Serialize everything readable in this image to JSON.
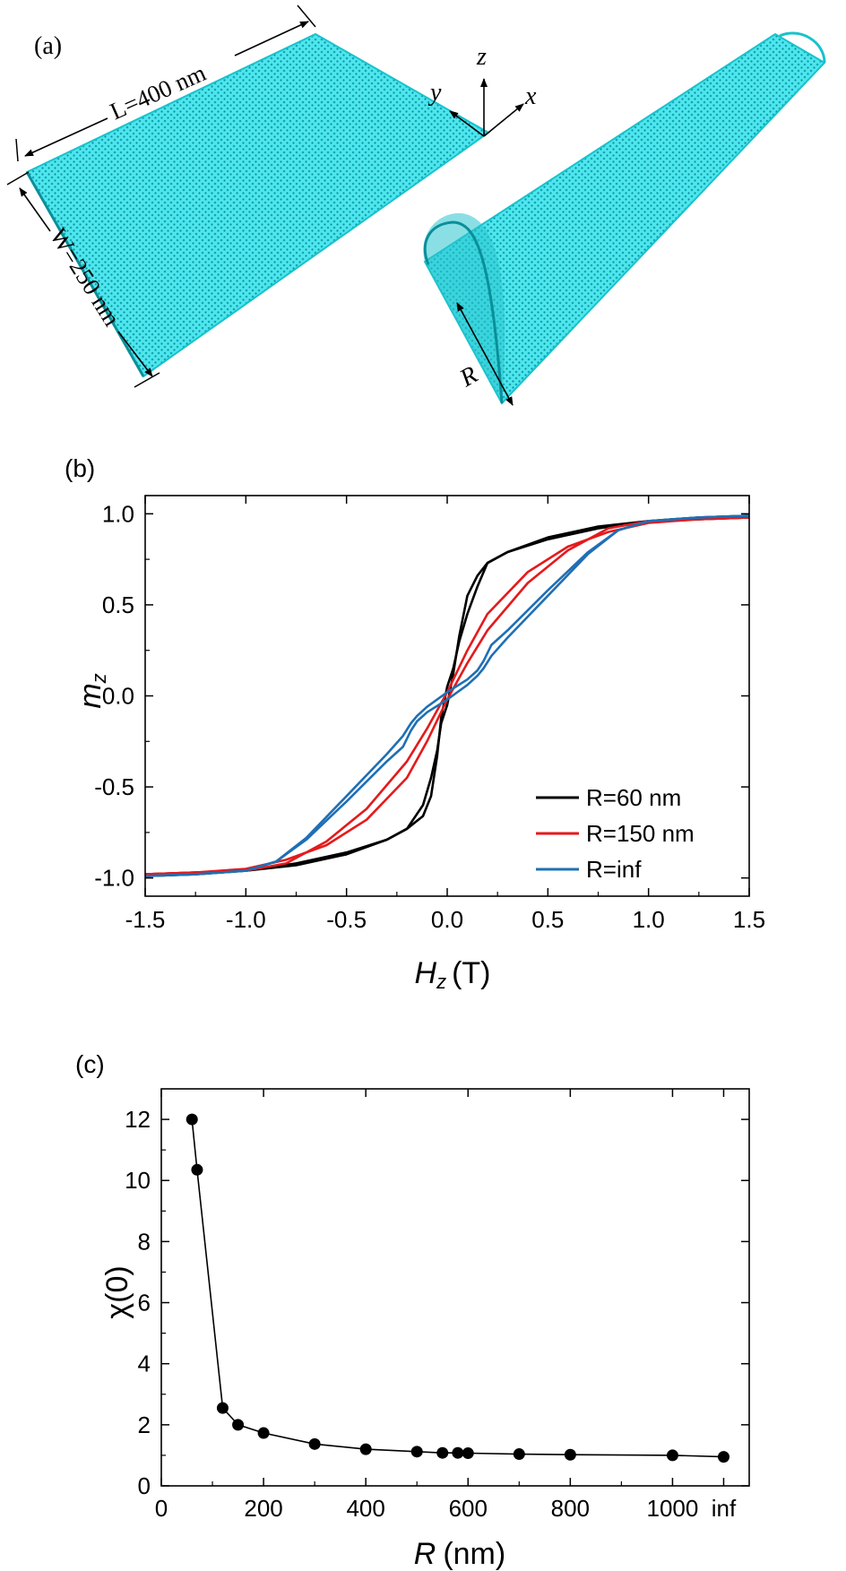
{
  "panel_a": {
    "label": "(a)",
    "length_label": "L=400 nm",
    "width_label": "W=250 nm",
    "radius_label": "R",
    "axis_x": "x",
    "axis_y": "y",
    "axis_z": "z",
    "spin_color": "#20d4e0"
  },
  "chart_data": [
    {
      "panel": "(b)",
      "type": "line",
      "title": "",
      "xlabel_main": "H",
      "xlabel_sub": "z",
      "xlabel_unit": "(T)",
      "ylabel_main": "m",
      "ylabel_sub": "z",
      "xlim": [
        -1.5,
        1.5
      ],
      "ylim": [
        -1.1,
        1.1
      ],
      "xticks": [
        -1.5,
        -1.0,
        -0.5,
        0.0,
        0.5,
        1.0,
        1.5
      ],
      "xtick_labels": [
        "-1.5",
        "-1.0",
        "-0.5",
        "0.0",
        "0.5",
        "1.0",
        "1.5"
      ],
      "yticks": [
        -1.0,
        -0.5,
        0.0,
        0.5,
        1.0
      ],
      "ytick_labels": [
        "-1.0",
        "-0.5",
        "0.0",
        "0.5",
        "1.0"
      ],
      "legend_position": "bottom-right",
      "series": [
        {
          "name": "R=60 nm",
          "color": "#000000",
          "x": [
            -1.5,
            -1.25,
            -1.0,
            -0.75,
            -0.5,
            -0.3,
            -0.2,
            -0.12,
            -0.08,
            -0.05,
            -0.03,
            0.0,
            0.03,
            0.06,
            0.1,
            0.15,
            0.2,
            0.3,
            0.5,
            0.75,
            1.0,
            1.25,
            1.5
          ],
          "y_ascending": [
            -0.98,
            -0.97,
            -0.96,
            -0.92,
            -0.86,
            -0.79,
            -0.73,
            -0.6,
            -0.45,
            -0.3,
            -0.15,
            -0.05,
            0.12,
            0.33,
            0.55,
            0.66,
            0.73,
            0.79,
            0.87,
            0.93,
            0.96,
            0.98,
            0.99
          ],
          "y_descending": [
            -0.99,
            -0.98,
            -0.96,
            -0.93,
            -0.87,
            -0.79,
            -0.73,
            -0.66,
            -0.55,
            -0.33,
            -0.12,
            0.05,
            0.15,
            0.3,
            0.45,
            0.6,
            0.73,
            0.79,
            0.86,
            0.92,
            0.96,
            0.97,
            0.98
          ]
        },
        {
          "name": "R=150 nm",
          "color": "#e41a1c",
          "x": [
            -1.5,
            -1.25,
            -1.0,
            -0.8,
            -0.6,
            -0.4,
            -0.2,
            -0.1,
            0.0,
            0.1,
            0.2,
            0.4,
            0.6,
            0.8,
            1.0,
            1.25,
            1.5
          ],
          "y_ascending": [
            -0.98,
            -0.97,
            -0.95,
            -0.9,
            -0.82,
            -0.68,
            -0.45,
            -0.25,
            -0.02,
            0.18,
            0.36,
            0.62,
            0.8,
            0.92,
            0.96,
            0.97,
            0.98
          ],
          "y_descending": [
            -0.98,
            -0.97,
            -0.96,
            -0.92,
            -0.8,
            -0.62,
            -0.36,
            -0.18,
            0.02,
            0.25,
            0.45,
            0.68,
            0.82,
            0.9,
            0.95,
            0.97,
            0.98
          ]
        },
        {
          "name": "R=inf",
          "color": "#1f6fb4",
          "x": [
            -1.5,
            -1.25,
            -1.0,
            -0.85,
            -0.7,
            -0.5,
            -0.3,
            -0.22,
            -0.18,
            -0.15,
            -0.1,
            0.0,
            0.1,
            0.15,
            0.18,
            0.22,
            0.3,
            0.5,
            0.7,
            0.85,
            1.0,
            1.25,
            1.5
          ],
          "y_ascending": [
            -0.99,
            -0.98,
            -0.96,
            -0.91,
            -0.78,
            -0.55,
            -0.32,
            -0.22,
            -0.15,
            -0.11,
            -0.06,
            0.02,
            0.09,
            0.14,
            0.19,
            0.28,
            0.36,
            0.58,
            0.79,
            0.91,
            0.96,
            0.98,
            0.99
          ],
          "y_descending": [
            -0.99,
            -0.98,
            -0.96,
            -0.91,
            -0.79,
            -0.58,
            -0.36,
            -0.28,
            -0.19,
            -0.14,
            -0.09,
            -0.02,
            0.06,
            0.11,
            0.15,
            0.22,
            0.32,
            0.55,
            0.78,
            0.91,
            0.96,
            0.98,
            0.99
          ]
        }
      ]
    },
    {
      "panel": "(c)",
      "type": "line",
      "title": "",
      "xlabel_main": "R",
      "xlabel_unit": "(nm)",
      "ylabel": "χ(0)",
      "xlim": [
        0,
        1150
      ],
      "ylim": [
        0,
        13
      ],
      "xticks": [
        0,
        200,
        400,
        600,
        800,
        1000,
        1100
      ],
      "xtick_labels": [
        "0",
        "200",
        "400",
        "600",
        "800",
        "1000",
        "inf"
      ],
      "yticks": [
        0,
        2,
        4,
        6,
        8,
        10,
        12
      ],
      "ytick_labels": [
        "0",
        "2",
        "4",
        "6",
        "8",
        "10",
        "12"
      ],
      "series": [
        {
          "name": "",
          "color": "#000000",
          "x": [
            60,
            70,
            120,
            150,
            200,
            300,
            400,
            500,
            550,
            580,
            600,
            700,
            800,
            1000,
            1100
          ],
          "y": [
            12.0,
            10.35,
            2.55,
            2.0,
            1.73,
            1.37,
            1.2,
            1.12,
            1.08,
            1.08,
            1.07,
            1.04,
            1.02,
            1.0,
            0.95
          ]
        }
      ]
    }
  ]
}
